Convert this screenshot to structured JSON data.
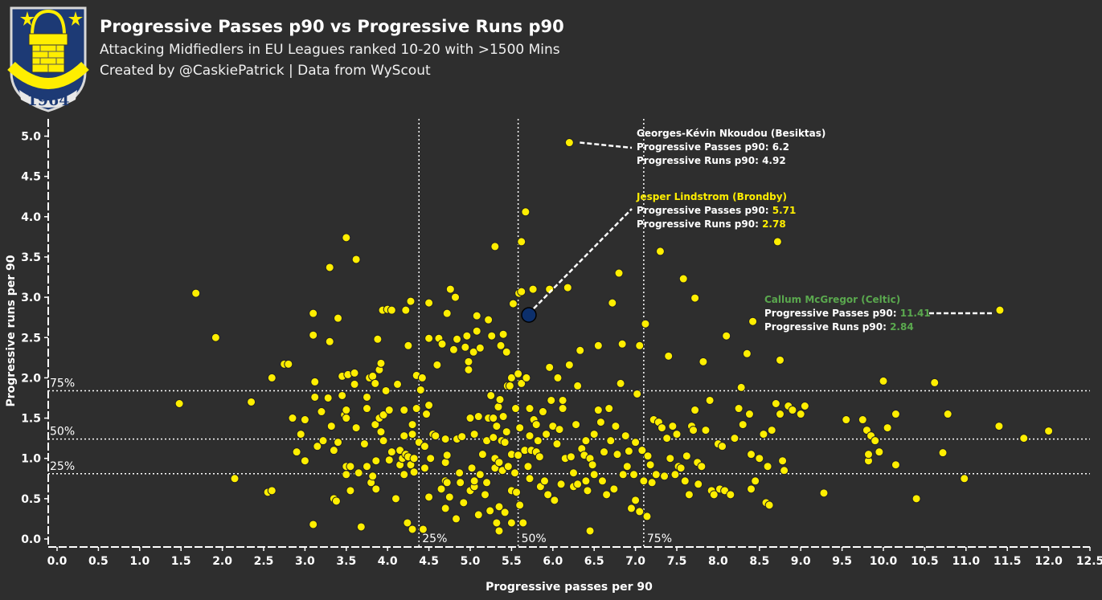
{
  "header": {
    "title": "Progressive Passes p90 vs Progressive Runs p90",
    "subtitle": "Attacking Midfiedlers in EU Leagues ranked 10-20 with >1500 Mins",
    "credit": "Created by @CaskiePatrick | Data from WyScout",
    "logo_text": "1964"
  },
  "colors": {
    "background": "#2e2e2e",
    "point": "#ffee00",
    "highlight": "#0c2f6b",
    "highlight_text": "#ffee00",
    "celtic": "#5aa84e"
  },
  "chart_data": {
    "type": "scatter",
    "xlabel": "Progressive passes per 90",
    "ylabel": "Progressive runs per 90",
    "xlim": [
      -0.1,
      12.6
    ],
    "ylim": [
      -0.1,
      5.25
    ],
    "xticks": [
      "0.0",
      "0.5",
      "1.0",
      "1.5",
      "2.0",
      "2.5",
      "3.0",
      "3.5",
      "4.0",
      "4.5",
      "5.0",
      "5.5",
      "6.0",
      "6.5",
      "7.0",
      "7.5",
      "8.0",
      "8.5",
      "9.0",
      "9.5",
      "10.0",
      "10.5",
      "11.0",
      "11.5",
      "12.0",
      "12.5"
    ],
    "yticks": [
      "0.0",
      "0.5",
      "1.0",
      "1.5",
      "2.0",
      "2.5",
      "3.0",
      "3.5",
      "4.0",
      "4.5",
      "5.0"
    ],
    "grid": false,
    "percentile_lines": {
      "x": [
        {
          "label": "25%",
          "value": 4.38
        },
        {
          "label": "50%",
          "value": 5.58
        },
        {
          "label": "75%",
          "value": 7.1
        }
      ],
      "y": [
        {
          "label": "75%",
          "value": 1.84
        },
        {
          "label": "50%",
          "value": 1.24
        },
        {
          "label": "25%",
          "value": 0.81
        }
      ]
    },
    "points": [
      [
        1.48,
        1.68
      ],
      [
        1.68,
        3.05
      ],
      [
        1.92,
        2.5
      ],
      [
        2.15,
        0.75
      ],
      [
        2.35,
        1.7
      ],
      [
        2.55,
        0.58
      ],
      [
        2.6,
        0.6
      ],
      [
        2.6,
        2.0
      ],
      [
        2.75,
        2.17
      ],
      [
        2.8,
        2.17
      ],
      [
        2.85,
        1.5
      ],
      [
        2.9,
        1.08
      ],
      [
        2.95,
        1.3
      ],
      [
        3.0,
        1.48
      ],
      [
        3.0,
        0.97
      ],
      [
        3.1,
        0.18
      ],
      [
        3.1,
        2.8
      ],
      [
        3.1,
        2.53
      ],
      [
        3.12,
        1.95
      ],
      [
        3.12,
        1.76
      ],
      [
        3.15,
        1.15
      ],
      [
        3.2,
        1.58
      ],
      [
        3.22,
        1.22
      ],
      [
        3.28,
        1.75
      ],
      [
        3.3,
        3.37
      ],
      [
        3.3,
        2.45
      ],
      [
        3.32,
        1.4
      ],
      [
        3.35,
        1.1
      ],
      [
        3.35,
        0.5
      ],
      [
        3.38,
        0.47
      ],
      [
        3.4,
        1.2
      ],
      [
        3.4,
        2.74
      ],
      [
        3.45,
        1.78
      ],
      [
        3.45,
        2.02
      ],
      [
        3.48,
        1.54
      ],
      [
        3.5,
        3.74
      ],
      [
        3.5,
        1.6
      ],
      [
        3.5,
        1.5
      ],
      [
        3.5,
        0.8
      ],
      [
        3.5,
        0.9
      ],
      [
        3.52,
        2.04
      ],
      [
        3.55,
        0.9
      ],
      [
        3.55,
        0.6
      ],
      [
        3.6,
        2.06
      ],
      [
        3.6,
        1.92
      ],
      [
        3.62,
        3.47
      ],
      [
        3.62,
        1.38
      ],
      [
        3.65,
        0.82
      ],
      [
        3.68,
        0.15
      ],
      [
        3.72,
        1.18
      ],
      [
        3.75,
        0.9
      ],
      [
        3.75,
        1.76
      ],
      [
        3.75,
        1.62
      ],
      [
        3.78,
        2.0
      ],
      [
        3.8,
        0.7
      ],
      [
        3.82,
        2.02
      ],
      [
        3.82,
        0.78
      ],
      [
        3.85,
        1.93
      ],
      [
        3.85,
        1.42
      ],
      [
        3.86,
        0.62
      ],
      [
        3.86,
        0.97
      ],
      [
        3.88,
        2.48
      ],
      [
        3.9,
        2.1
      ],
      [
        3.9,
        1.5
      ],
      [
        3.92,
        1.33
      ],
      [
        3.92,
        2.18
      ],
      [
        3.94,
        2.84
      ],
      [
        3.95,
        1.22
      ],
      [
        3.95,
        1.54
      ],
      [
        3.98,
        1.84
      ],
      [
        4.0,
        2.85
      ],
      [
        4.02,
        1.6
      ],
      [
        4.02,
        0.98
      ],
      [
        4.05,
        2.84
      ],
      [
        4.05,
        1.08
      ],
      [
        4.1,
        0.5
      ],
      [
        4.12,
        1.92
      ],
      [
        4.15,
        1.1
      ],
      [
        4.15,
        0.92
      ],
      [
        4.18,
        1.0
      ],
      [
        4.2,
        1.28
      ],
      [
        4.2,
        1.6
      ],
      [
        4.2,
        0.8
      ],
      [
        4.22,
        2.84
      ],
      [
        4.22,
        1.05
      ],
      [
        4.24,
        0.2
      ],
      [
        4.25,
        2.4
      ],
      [
        4.25,
        1.02
      ],
      [
        4.28,
        2.95
      ],
      [
        4.28,
        0.92
      ],
      [
        4.3,
        1.42
      ],
      [
        4.3,
        1.3
      ],
      [
        4.3,
        0.12
      ],
      [
        4.32,
        0.83
      ],
      [
        4.32,
        1.0
      ],
      [
        4.35,
        2.03
      ],
      [
        4.35,
        1.62
      ],
      [
        4.38,
        1.2
      ],
      [
        4.4,
        1.85
      ],
      [
        4.42,
        2.0
      ],
      [
        4.43,
        0.12
      ],
      [
        4.45,
        1.15
      ],
      [
        4.45,
        0.88
      ],
      [
        4.47,
        1.55
      ],
      [
        4.5,
        0.52
      ],
      [
        4.5,
        1.66
      ],
      [
        4.5,
        2.49
      ],
      [
        4.5,
        2.93
      ],
      [
        4.52,
        1.0
      ],
      [
        4.55,
        1.3
      ],
      [
        4.58,
        1.28
      ],
      [
        4.6,
        2.16
      ],
      [
        4.62,
        2.49
      ],
      [
        4.65,
        0.62
      ],
      [
        4.66,
        2.42
      ],
      [
        4.7,
        0.38
      ],
      [
        4.7,
        1.24
      ],
      [
        4.7,
        0.95
      ],
      [
        4.7,
        0.72
      ],
      [
        4.72,
        0.7
      ],
      [
        4.72,
        2.8
      ],
      [
        4.72,
        1.04
      ],
      [
        4.75,
        0.52
      ],
      [
        4.76,
        3.1
      ],
      [
        4.8,
        2.35
      ],
      [
        4.82,
        3.0
      ],
      [
        4.83,
        0.25
      ],
      [
        4.84,
        1.24
      ],
      [
        4.84,
        2.48
      ],
      [
        4.87,
        0.82
      ],
      [
        4.88,
        0.7
      ],
      [
        4.9,
        1.27
      ],
      [
        4.92,
        0.45
      ],
      [
        4.94,
        2.38
      ],
      [
        4.96,
        2.52
      ],
      [
        4.98,
        2.1
      ],
      [
        4.98,
        2.2
      ],
      [
        5.0,
        0.6
      ],
      [
        5.0,
        1.5
      ],
      [
        5.02,
        0.88
      ],
      [
        5.04,
        2.32
      ],
      [
        5.05,
        1.3
      ],
      [
        5.05,
        0.65
      ],
      [
        5.05,
        0.72
      ],
      [
        5.08,
        2.58
      ],
      [
        5.08,
        2.77
      ],
      [
        5.1,
        0.3
      ],
      [
        5.1,
        1.52
      ],
      [
        5.12,
        2.37
      ],
      [
        5.12,
        0.8
      ],
      [
        5.15,
        1.05
      ],
      [
        5.18,
        0.55
      ],
      [
        5.2,
        0.7
      ],
      [
        5.2,
        1.22
      ],
      [
        5.22,
        1.5
      ],
      [
        5.22,
        2.72
      ],
      [
        5.24,
        0.35
      ],
      [
        5.25,
        1.78
      ],
      [
        5.26,
        2.52
      ],
      [
        5.28,
        1.26
      ],
      [
        5.28,
        1.5
      ],
      [
        5.3,
        3.63
      ],
      [
        5.3,
        1.0
      ],
      [
        5.3,
        0.88
      ],
      [
        5.32,
        1.4
      ],
      [
        5.32,
        0.2
      ],
      [
        5.34,
        1.64
      ],
      [
        5.35,
        0.95
      ],
      [
        5.35,
        0.1
      ],
      [
        5.35,
        0.4
      ],
      [
        5.36,
        1.73
      ],
      [
        5.37,
        2.4
      ],
      [
        5.38,
        1.22
      ],
      [
        5.39,
        0.85
      ],
      [
        5.4,
        2.54
      ],
      [
        5.4,
        1.52
      ],
      [
        5.42,
        0.33
      ],
      [
        5.42,
        1.2
      ],
      [
        5.44,
        2.32
      ],
      [
        5.44,
        1.33
      ],
      [
        5.45,
        1.9
      ],
      [
        5.46,
        0.9
      ],
      [
        5.48,
        1.9
      ],
      [
        5.5,
        0.6
      ],
      [
        5.5,
        1.05
      ],
      [
        5.5,
        2.0
      ],
      [
        5.5,
        0.2
      ],
      [
        5.52,
        2.92
      ],
      [
        5.54,
        0.82
      ],
      [
        5.55,
        1.62
      ],
      [
        5.56,
        0.58
      ],
      [
        5.58,
        1.04
      ],
      [
        5.58,
        2.05
      ],
      [
        5.59,
        3.05
      ],
      [
        5.6,
        1.38
      ],
      [
        5.6,
        0.42
      ],
      [
        5.62,
        3.07
      ],
      [
        5.62,
        1.93
      ],
      [
        5.62,
        3.69
      ],
      [
        5.64,
        0.2
      ],
      [
        5.66,
        1.1
      ],
      [
        5.67,
        4.06
      ],
      [
        5.68,
        2.0
      ],
      [
        5.7,
        0.9
      ],
      [
        5.72,
        1.62
      ],
      [
        5.72,
        1.28
      ],
      [
        5.72,
        0.75
      ],
      [
        5.74,
        1.1
      ],
      [
        5.76,
        3.1
      ],
      [
        5.77,
        1.48
      ],
      [
        5.8,
        1.42
      ],
      [
        5.8,
        1.08
      ],
      [
        5.82,
        1.22
      ],
      [
        5.84,
        1.02
      ],
      [
        5.85,
        0.65
      ],
      [
        5.88,
        1.58
      ],
      [
        5.9,
        0.72
      ],
      [
        5.92,
        1.3
      ],
      [
        5.94,
        0.55
      ],
      [
        5.96,
        3.1
      ],
      [
        5.96,
        2.13
      ],
      [
        5.98,
        1.72
      ],
      [
        6.0,
        1.4
      ],
      [
        6.02,
        0.48
      ],
      [
        6.05,
        1.18
      ],
      [
        6.06,
        2.0
      ],
      [
        6.08,
        1.36
      ],
      [
        6.1,
        0.68
      ],
      [
        6.12,
        1.62
      ],
      [
        6.12,
        1.72
      ],
      [
        6.15,
        1.0
      ],
      [
        6.18,
        3.12
      ],
      [
        6.2,
        2.16
      ],
      [
        6.22,
        1.02
      ],
      [
        6.25,
        0.82
      ],
      [
        6.25,
        0.65
      ],
      [
        6.28,
        1.42
      ],
      [
        6.3,
        0.68
      ],
      [
        6.3,
        1.9
      ],
      [
        6.33,
        2.34
      ],
      [
        6.35,
        1.12
      ],
      [
        6.38,
        1.04
      ],
      [
        6.4,
        1.22
      ],
      [
        6.4,
        0.72
      ],
      [
        6.42,
        0.6
      ],
      [
        6.45,
        1.0
      ],
      [
        6.45,
        0.1
      ],
      [
        6.48,
        0.92
      ],
      [
        6.5,
        1.3
      ],
      [
        6.5,
        0.8
      ],
      [
        6.55,
        2.4
      ],
      [
        6.55,
        1.6
      ],
      [
        6.58,
        1.45
      ],
      [
        6.6,
        0.72
      ],
      [
        6.62,
        1.08
      ],
      [
        6.65,
        0.55
      ],
      [
        6.68,
        1.62
      ],
      [
        6.7,
        1.22
      ],
      [
        6.72,
        2.93
      ],
      [
        6.74,
        0.62
      ],
      [
        6.76,
        1.4
      ],
      [
        6.78,
        1.05
      ],
      [
        6.8,
        3.3
      ],
      [
        6.82,
        1.93
      ],
      [
        6.84,
        2.42
      ],
      [
        6.85,
        0.8
      ],
      [
        6.88,
        1.28
      ],
      [
        6.9,
        0.9
      ],
      [
        6.92,
        1.09
      ],
      [
        6.95,
        0.38
      ],
      [
        6.98,
        0.8
      ],
      [
        7.0,
        1.2
      ],
      [
        7.0,
        0.48
      ],
      [
        7.02,
        1.8
      ],
      [
        7.05,
        2.4
      ],
      [
        7.05,
        0.34
      ],
      [
        7.08,
        1.1
      ],
      [
        7.1,
        0.72
      ],
      [
        7.12,
        2.67
      ],
      [
        7.14,
        0.28
      ],
      [
        7.15,
        1.03
      ],
      [
        7.18,
        0.92
      ],
      [
        7.2,
        0.7
      ],
      [
        7.22,
        1.48
      ],
      [
        7.25,
        0.8
      ],
      [
        7.28,
        1.45
      ],
      [
        7.3,
        3.57
      ],
      [
        7.32,
        1.38
      ],
      [
        7.35,
        0.78
      ],
      [
        7.38,
        1.25
      ],
      [
        7.4,
        2.27
      ],
      [
        7.42,
        1.0
      ],
      [
        7.45,
        1.4
      ],
      [
        7.48,
        0.8
      ],
      [
        7.5,
        1.3
      ],
      [
        7.52,
        0.9
      ],
      [
        7.55,
        0.88
      ],
      [
        7.58,
        3.23
      ],
      [
        7.6,
        0.72
      ],
      [
        7.62,
        1.03
      ],
      [
        7.65,
        0.55
      ],
      [
        7.68,
        1.4
      ],
      [
        7.7,
        1.35
      ],
      [
        7.72,
        2.99
      ],
      [
        7.72,
        1.6
      ],
      [
        7.75,
        0.95
      ],
      [
        7.76,
        0.68
      ],
      [
        7.8,
        0.9
      ],
      [
        7.82,
        2.2
      ],
      [
        7.85,
        1.35
      ],
      [
        7.9,
        1.72
      ],
      [
        7.92,
        0.6
      ],
      [
        7.95,
        0.55
      ],
      [
        8.0,
        1.18
      ],
      [
        8.02,
        0.62
      ],
      [
        8.05,
        1.15
      ],
      [
        8.08,
        0.6
      ],
      [
        8.1,
        2.52
      ],
      [
        8.15,
        0.55
      ],
      [
        8.2,
        1.25
      ],
      [
        8.25,
        1.62
      ],
      [
        8.28,
        1.88
      ],
      [
        8.3,
        1.42
      ],
      [
        8.35,
        2.3
      ],
      [
        8.38,
        1.55
      ],
      [
        8.4,
        1.05
      ],
      [
        8.4,
        0.62
      ],
      [
        8.42,
        2.7
      ],
      [
        8.45,
        0.72
      ],
      [
        8.5,
        1.0
      ],
      [
        8.55,
        1.3
      ],
      [
        8.58,
        0.45
      ],
      [
        8.6,
        0.9
      ],
      [
        8.62,
        0.42
      ],
      [
        8.65,
        1.35
      ],
      [
        8.7,
        1.68
      ],
      [
        8.72,
        3.69
      ],
      [
        8.75,
        1.55
      ],
      [
        8.75,
        2.22
      ],
      [
        8.78,
        0.97
      ],
      [
        8.8,
        0.85
      ],
      [
        8.85,
        1.65
      ],
      [
        8.9,
        1.6
      ],
      [
        9.0,
        1.55
      ],
      [
        9.05,
        1.65
      ],
      [
        9.28,
        0.57
      ],
      [
        9.55,
        1.48
      ],
      [
        9.75,
        1.48
      ],
      [
        9.8,
        1.35
      ],
      [
        9.82,
        0.97
      ],
      [
        9.82,
        1.05
      ],
      [
        9.85,
        1.28
      ],
      [
        9.9,
        1.22
      ],
      [
        9.95,
        1.08
      ],
      [
        10.0,
        1.96
      ],
      [
        10.05,
        1.38
      ],
      [
        10.15,
        1.55
      ],
      [
        10.15,
        0.92
      ],
      [
        10.4,
        0.5
      ],
      [
        10.62,
        1.94
      ],
      [
        10.72,
        1.07
      ],
      [
        10.78,
        1.55
      ],
      [
        10.98,
        0.75
      ],
      [
        11.4,
        1.4
      ],
      [
        11.7,
        1.25
      ],
      [
        12.0,
        1.34
      ],
      [
        6.2,
        4.92
      ],
      [
        11.41,
        2.84
      ]
    ],
    "highlight": {
      "name": "Jesper Lindstrom",
      "x": 5.71,
      "y": 2.78
    },
    "annotations": [
      {
        "name": "Georges-Kévin Nkoudou (Besiktas)",
        "passes_label": "Progressive Passes p90: ",
        "passes": "6.2",
        "runs_label": "Progressive Runs p90: ",
        "runs": "4.92",
        "x": 6.2,
        "y": 4.92
      },
      {
        "name": "Jesper Lindstrom (Brondby)",
        "passes_label": "Progressive Passes p90: ",
        "passes": "5.71",
        "runs_label": "Progressive Runs p90: ",
        "runs": "2.78",
        "x": 5.71,
        "y": 2.78
      },
      {
        "name": "Callum McGregor (Celtic)",
        "passes_label": "Progressive Passes p90: ",
        "passes": "11.41",
        "runs_label": "Progressive Runs p90: ",
        "runs": "2.84",
        "x": 11.41,
        "y": 2.84
      }
    ]
  }
}
